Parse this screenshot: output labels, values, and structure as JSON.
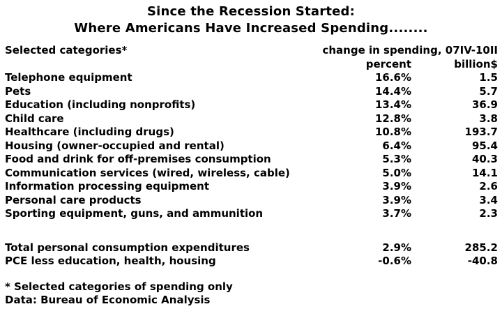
{
  "title": {
    "line1": "Since the Recession Started:",
    "line2": "Where Americans Have Increased Spending........"
  },
  "table": {
    "header": {
      "categories_label": "Selected categories*",
      "change_label": "change in spending, 07IV-10II",
      "percent_label": "percent",
      "billion_label": "billion$"
    },
    "rows": [
      {
        "category": "Telephone equipment",
        "percent": "16.6%",
        "billion": "1.5"
      },
      {
        "category": "Pets",
        "percent": "14.4%",
        "billion": "5.7"
      },
      {
        "category": "Education (including nonprofits)",
        "percent": "13.4%",
        "billion": "36.9"
      },
      {
        "category": "Child care",
        "percent": "12.8%",
        "billion": "3.8"
      },
      {
        "category": "Healthcare (including drugs)",
        "percent": "10.8%",
        "billion": "193.7"
      },
      {
        "category": "Housing (owner-occupied and rental)",
        "percent": "6.4%",
        "billion": "95.4"
      },
      {
        "category": "Food and drink for off-premises consumption",
        "percent": "5.3%",
        "billion": "40.3"
      },
      {
        "category": "Communication services (wired, wireless, cable)",
        "percent": "5.0%",
        "billion": "14.1"
      },
      {
        "category": "Information processing equipment",
        "percent": "3.9%",
        "billion": "2.6"
      },
      {
        "category": "Personal care products",
        "percent": "3.9%",
        "billion": "3.4"
      },
      {
        "category": "Sporting equipment, guns, and ammunition",
        "percent": "3.7%",
        "billion": "2.3"
      }
    ],
    "totals": [
      {
        "category": "Total personal consumption expenditures",
        "percent": "2.9%",
        "billion": "285.2"
      },
      {
        "category": "PCE less education, health, housing",
        "percent": "-0.6%",
        "billion": "-40.8"
      }
    ]
  },
  "footnotes": {
    "line1": "* Selected categories of spending only",
    "line2": "Data: Bureau of Economic Analysis"
  },
  "colors": {
    "text": "#000000",
    "background": "#ffffff"
  },
  "chart_data": {
    "type": "table",
    "title": "Since the Recession Started: Where Americans Have Increased Spending........",
    "columns": [
      "Selected categories*",
      "change in spending percent, 07IV-10II",
      "change in spending billion$, 07IV-10II"
    ],
    "categories": [
      "Telephone equipment",
      "Pets",
      "Education (including nonprofits)",
      "Child care",
      "Healthcare (including drugs)",
      "Housing (owner-occupied and rental)",
      "Food and drink for off-premises consumption",
      "Communication services (wired, wireless, cable)",
      "Information processing equipment",
      "Personal care products",
      "Sporting equipment, guns, and ammunition"
    ],
    "series": [
      {
        "name": "percent",
        "values": [
          16.6,
          14.4,
          13.4,
          12.8,
          10.8,
          6.4,
          5.3,
          5.0,
          3.9,
          3.9,
          3.7
        ]
      },
      {
        "name": "billion$",
        "values": [
          1.5,
          5.7,
          36.9,
          3.8,
          193.7,
          95.4,
          40.3,
          14.1,
          2.6,
          3.4,
          2.3
        ]
      }
    ],
    "totals": [
      {
        "category": "Total personal consumption expenditures",
        "percent": 2.9,
        "billion": 285.2
      },
      {
        "category": "PCE less education, health, housing",
        "percent": -0.6,
        "billion": -40.8
      }
    ],
    "footnote": "* Selected categories of spending only",
    "source": "Data: Bureau of Economic Analysis"
  }
}
